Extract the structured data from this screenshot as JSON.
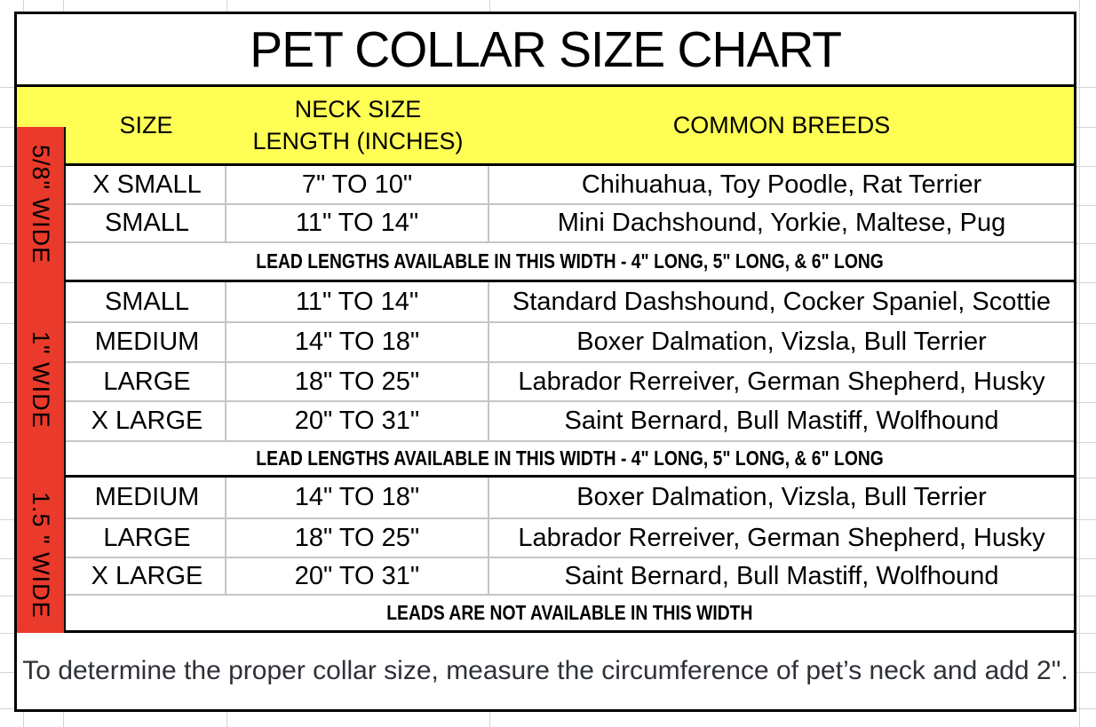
{
  "title": "PET COLLAR SIZE CHART",
  "header": {
    "size": "SIZE",
    "neck_line1": "NECK SIZE",
    "neck_line2": "LENGTH (INCHES)",
    "breeds": "COMMON BREEDS"
  },
  "sections": [
    {
      "width_label": "5/8\" WIDE",
      "rows": [
        {
          "size": "X SMALL",
          "neck": "7\" TO 10\"",
          "breeds": "Chihuahua, Toy Poodle, Rat Terrier"
        },
        {
          "size": "SMALL",
          "neck": "11\" TO 14\"",
          "breeds": "Mini Dachshound, Yorkie, Maltese, Pug"
        }
      ],
      "footer": "LEAD LENGTHS AVAILABLE IN THIS WIDTH - 4\" LONG, 5\" LONG, & 6\" LONG"
    },
    {
      "width_label": "1\" WIDE",
      "rows": [
        {
          "size": "SMALL",
          "neck": "11\" TO 14\"",
          "breeds": "Standard Dashshound, Cocker Spaniel, Scottie"
        },
        {
          "size": "MEDIUM",
          "neck": "14\" TO 18\"",
          "breeds": "Boxer Dalmation, Vizsla, Bull Terrier"
        },
        {
          "size": "LARGE",
          "neck": "18\" TO 25\"",
          "breeds": "Labrador Rerreiver, German Shepherd, Husky"
        },
        {
          "size": "X LARGE",
          "neck": "20\" TO 31\"",
          "breeds": "Saint Bernard, Bull Mastiff, Wolfhound"
        }
      ],
      "footer": "LEAD LENGTHS AVAILABLE IN THIS WIDTH  - 4\" LONG, 5\" LONG, & 6\" LONG"
    },
    {
      "width_label": "1.5 \" WIDE",
      "rows": [
        {
          "size": "MEDIUM",
          "neck": "14\" TO 18\"",
          "breeds": "Boxer Dalmation, Vizsla, Bull Terrier"
        },
        {
          "size": "LARGE",
          "neck": "18\" TO 25\"",
          "breeds": "Labrador Rerreiver, German Shepherd, Husky"
        },
        {
          "size": "X LARGE",
          "neck": "20\" TO 31\"",
          "breeds": "Saint Bernard, Bull Mastiff, Wolfhound"
        }
      ],
      "footer": "LEADS ARE NOT AVAILABLE IN THIS WIDTH"
    }
  ],
  "note": "To determine the proper collar size, measure the circumference of pet’s neck and add 2\".",
  "colors": {
    "header_fill": "#fefe55",
    "width_label_fill": "#e93a2b",
    "border": "#000000",
    "row_separator": "#c5c5c5",
    "sheet_gridline": "#d4d4d4",
    "note_text": "#2e3238"
  }
}
